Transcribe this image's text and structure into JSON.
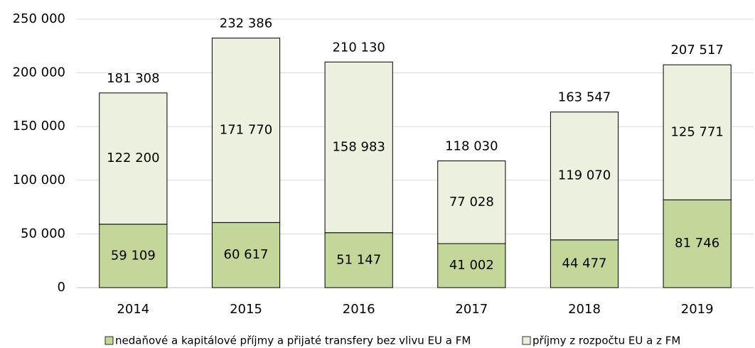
{
  "chart_data": {
    "type": "stacked_bar",
    "categories": [
      "2014",
      "2015",
      "2016",
      "2017",
      "2018",
      "2019"
    ],
    "series": [
      {
        "name": "nedaňové a kapitálové příjmy a přijaté transfery bez vlivu EU a FM",
        "color": "#c4d79b",
        "values": [
          59109,
          60617,
          51147,
          41002,
          44477,
          81746
        ],
        "value_labels": [
          "59 109",
          "60 617",
          "51 147",
          "41 002",
          "44 477",
          "81 746"
        ]
      },
      {
        "name": "příjmy z rozpočtu EU a z FM",
        "color": "#ebf1de",
        "values": [
          122200,
          171770,
          158983,
          77028,
          119070,
          125771
        ],
        "value_labels": [
          "122 200",
          "171 770",
          "158 983",
          "77 028",
          "119 070",
          "125 771"
        ]
      }
    ],
    "totals": [
      181308,
      232386,
      210130,
      118030,
      163547,
      207517
    ],
    "total_labels": [
      "181 308",
      "232 386",
      "210 130",
      "118 030",
      "163 547",
      "207 517"
    ],
    "ylim": [
      0,
      250000
    ],
    "yticks": [
      0,
      {
        "value": 50000,
        "label": "50 000"
      },
      {
        "value": 100000,
        "label": "100 000"
      },
      {
        "value": 150000,
        "label": "150 000"
      },
      {
        "value": 200000,
        "label": "200 000"
      },
      {
        "value": 250000,
        "label": "250 000"
      }
    ],
    "grid": true,
    "legend": "bottom"
  }
}
